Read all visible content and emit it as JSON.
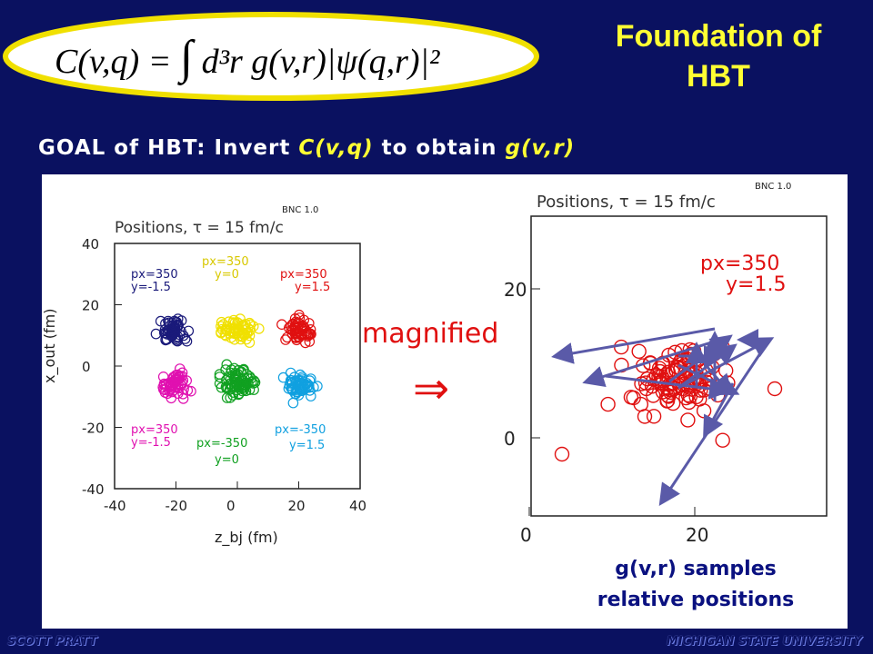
{
  "slide": {
    "title_line1": "Foundation of",
    "title_line2": "HBT",
    "formula": {
      "lhs": "C(v,q) =",
      "integral": "∫",
      "body": "d³r g(v,r)|ψ(q,r)|²"
    },
    "goal": {
      "prefix": "GOAL of HBT: Invert ",
      "cq": "C(v,q)",
      "middle": " to obtain ",
      "gv": "g(v,r)"
    },
    "caption_line1": "g(v,r) samples",
    "caption_line2": "relative positions",
    "footer_left": "SCOTT PRATT",
    "footer_right": "MICHIGAN STATE UNIVERSITY"
  },
  "left_plot": {
    "bnc": "BNC 1.0",
    "title": "Positions, τ = 15 fm/c",
    "ylabel": "x_out (fm)",
    "xlabel": "z_bj (fm)",
    "xticks": [
      "-40",
      "-20",
      "0",
      "20",
      "40"
    ],
    "yticks": [
      "40",
      "20",
      "0",
      "-20",
      "-40"
    ],
    "labels": {
      "tl1": "px=350",
      "tl2": "y=-1.5",
      "tc1": "px=350",
      "tc2": "y=0",
      "tr1": "px=350",
      "tr2": "y=1.5",
      "bl1": "px=350",
      "bl2": "y=-1.5",
      "bc1": "px=-350",
      "bc2": "y=0",
      "br1": "px=-350",
      "br2": "y=1.5"
    },
    "colors": {
      "navy": "#1a1a7a",
      "yellow": "#f0e000",
      "red": "#e01010",
      "magenta": "#e010b0",
      "green": "#10a020",
      "cyan": "#10a0e0"
    }
  },
  "middle": {
    "magnified": "magnified",
    "arrow": "⇒"
  },
  "right_plot": {
    "bnc": "BNC 1.0",
    "title": "Positions, τ = 15 fm/c",
    "xticks": [
      "0",
      "20"
    ],
    "yticks": [
      "20",
      "0"
    ],
    "label1": "px=350",
    "label2": "y=1.5",
    "circle_color": "#e01010",
    "arrow_color": "#5a5aa8"
  }
}
